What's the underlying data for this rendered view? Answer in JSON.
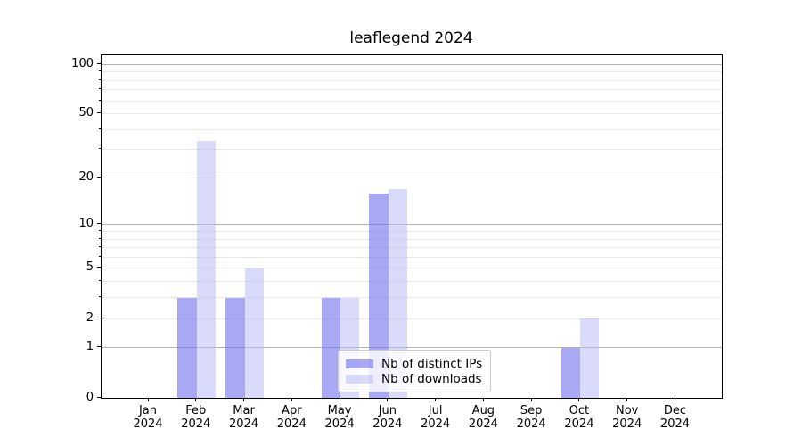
{
  "title": "leaflegend 2024",
  "colors": {
    "ips_fill": "rgba(110,110,238,0.6)",
    "downloads_fill": "rgba(182,182,246,0.5)",
    "grid_major": "#b4b4b4",
    "grid_minor": "#e9e9e9",
    "axis": "#000000",
    "legend_border": "#c9c9c9"
  },
  "chart_data": {
    "type": "bar",
    "title": "leaflegend 2024",
    "categories": [
      {
        "month": "Jan",
        "year": "2024"
      },
      {
        "month": "Feb",
        "year": "2024"
      },
      {
        "month": "Mar",
        "year": "2024"
      },
      {
        "month": "Apr",
        "year": "2024"
      },
      {
        "month": "May",
        "year": "2024"
      },
      {
        "month": "Jun",
        "year": "2024"
      },
      {
        "month": "Jul",
        "year": "2024"
      },
      {
        "month": "Aug",
        "year": "2024"
      },
      {
        "month": "Sep",
        "year": "2024"
      },
      {
        "month": "Oct",
        "year": "2024"
      },
      {
        "month": "Nov",
        "year": "2024"
      },
      {
        "month": "Dec",
        "year": "2024"
      }
    ],
    "series": [
      {
        "name": "Nb of distinct IPs",
        "values": [
          0,
          3,
          3,
          0,
          3,
          16,
          0,
          0,
          0,
          1,
          0,
          0
        ]
      },
      {
        "name": "Nb of downloads",
        "values": [
          0,
          34,
          5,
          0,
          3,
          17,
          0,
          0,
          0,
          2,
          0,
          0
        ]
      }
    ],
    "xlabel": "",
    "ylabel": "",
    "yscale": "log1p",
    "ylim": [
      0,
      114
    ],
    "yticks": [
      0,
      1,
      2,
      5,
      10,
      20,
      50,
      100
    ],
    "major_gridlines": [
      1,
      10,
      100
    ],
    "minor_gridlines": [
      2,
      3,
      4,
      5,
      6,
      7,
      8,
      9,
      20,
      30,
      40,
      50,
      60,
      70,
      80,
      90
    ],
    "grid": true,
    "legend_position": "lower-center"
  }
}
